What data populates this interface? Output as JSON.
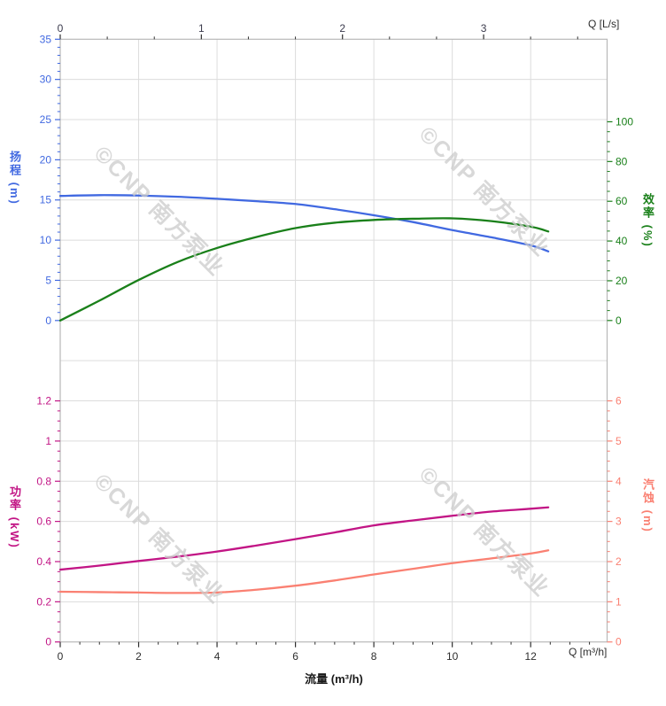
{
  "watermark": {
    "logo": "©",
    "text": "CNP 南方泵业",
    "color": "#cccccc"
  },
  "chart_data": [
    {
      "type": "line",
      "panel": "top",
      "title": "",
      "x_top_axis": {
        "label": "Q [L/s]",
        "tick_values": [
          0,
          1,
          2,
          3
        ],
        "tick_labels": [
          "0",
          "1",
          "2",
          "3"
        ],
        "minor_step": 0.3333,
        "max": 3.875
      },
      "x_range_m3h": [
        0,
        13.95
      ],
      "y_left": {
        "label": "扬程 (m)",
        "color": "#4169E1",
        "tick_values": [
          35,
          30,
          25,
          20,
          15,
          10,
          5,
          0
        ],
        "tick_labels": [
          "35",
          "30",
          "25",
          "20",
          "15",
          "10",
          "5",
          "0"
        ],
        "minor_step": 1,
        "min": 0,
        "max": 35
      },
      "y_right": {
        "label": "效率 (%)",
        "color": "#1a801a",
        "tick_values": [
          100,
          80,
          60,
          40,
          20,
          0
        ],
        "tick_labels": [
          "100",
          "80",
          "60",
          "40",
          "20",
          "0"
        ],
        "minor_step": 5,
        "min": 0,
        "max": 100
      },
      "grid": true,
      "series": [
        {
          "name": "head-curve",
          "legend": "扬程",
          "axis": "left",
          "color": "#4169E1",
          "x": [
            0,
            1,
            2,
            3,
            4,
            5,
            6,
            7,
            8,
            9,
            10,
            11,
            12,
            12.45
          ],
          "y": [
            15.5,
            15.6,
            15.55,
            15.4,
            15.15,
            14.85,
            14.5,
            13.85,
            13.1,
            12.25,
            11.25,
            10.35,
            9.35,
            8.6
          ]
        },
        {
          "name": "efficiency-curve",
          "legend": "效率",
          "axis": "right",
          "color": "#1a801a",
          "x": [
            0,
            1,
            2,
            3,
            4,
            5,
            6,
            7,
            8,
            9,
            10,
            11,
            12,
            12.45
          ],
          "y": [
            0,
            10,
            20.4,
            29.5,
            36.5,
            42,
            46.5,
            49.2,
            50.6,
            51.2,
            51.4,
            50,
            47.2,
            44.8
          ]
        }
      ]
    },
    {
      "type": "line",
      "panel": "bottom",
      "title": "",
      "x_axis": {
        "label": "Q [m³/h]",
        "title": "流量 (m³/h)",
        "tick_values": [
          0,
          2,
          4,
          6,
          8,
          10,
          12
        ],
        "tick_labels": [
          "0",
          "2",
          "4",
          "6",
          "8",
          "10",
          "12"
        ],
        "minor_step": 0.5,
        "max": 13.95
      },
      "y_left": {
        "label": "功率 (kW)",
        "color": "#C21585",
        "tick_values": [
          1.2,
          1.0,
          0.8,
          0.6,
          0.4,
          0.2,
          0
        ],
        "tick_labels": [
          "1.2",
          "1",
          "0.8",
          "0.6",
          "0.4",
          "0.2",
          "0"
        ],
        "minor_step": 0.05,
        "min": 0,
        "max": 1.4
      },
      "y_right": {
        "label": "汽蚀 (m)",
        "color": "#FA8072",
        "tick_values": [
          6,
          5,
          4,
          3,
          2,
          1,
          0
        ],
        "tick_labels": [
          "6",
          "5",
          "4",
          "3",
          "2",
          "1",
          "0"
        ],
        "minor_step": 0.25,
        "min": 0,
        "max": 7
      },
      "grid": true,
      "series": [
        {
          "name": "power-curve",
          "legend": "功率",
          "axis": "left",
          "color": "#C21585",
          "x": [
            0,
            1,
            2,
            3,
            4,
            5,
            6,
            7,
            8,
            9,
            10,
            11,
            12,
            12.45
          ],
          "y": [
            0.36,
            0.38,
            0.403,
            0.425,
            0.45,
            0.48,
            0.512,
            0.545,
            0.58,
            0.605,
            0.628,
            0.649,
            0.663,
            0.67
          ]
        },
        {
          "name": "npsh-curve",
          "legend": "汽蚀",
          "axis": "right",
          "color": "#FA8072",
          "x": [
            0,
            1,
            2,
            3,
            4,
            5,
            6,
            7,
            8,
            9,
            10,
            11,
            12,
            12.45
          ],
          "y": [
            1.25,
            1.24,
            1.23,
            1.22,
            1.23,
            1.3,
            1.4,
            1.53,
            1.68,
            1.82,
            1.96,
            2.08,
            2.2,
            2.28
          ]
        }
      ]
    }
  ]
}
